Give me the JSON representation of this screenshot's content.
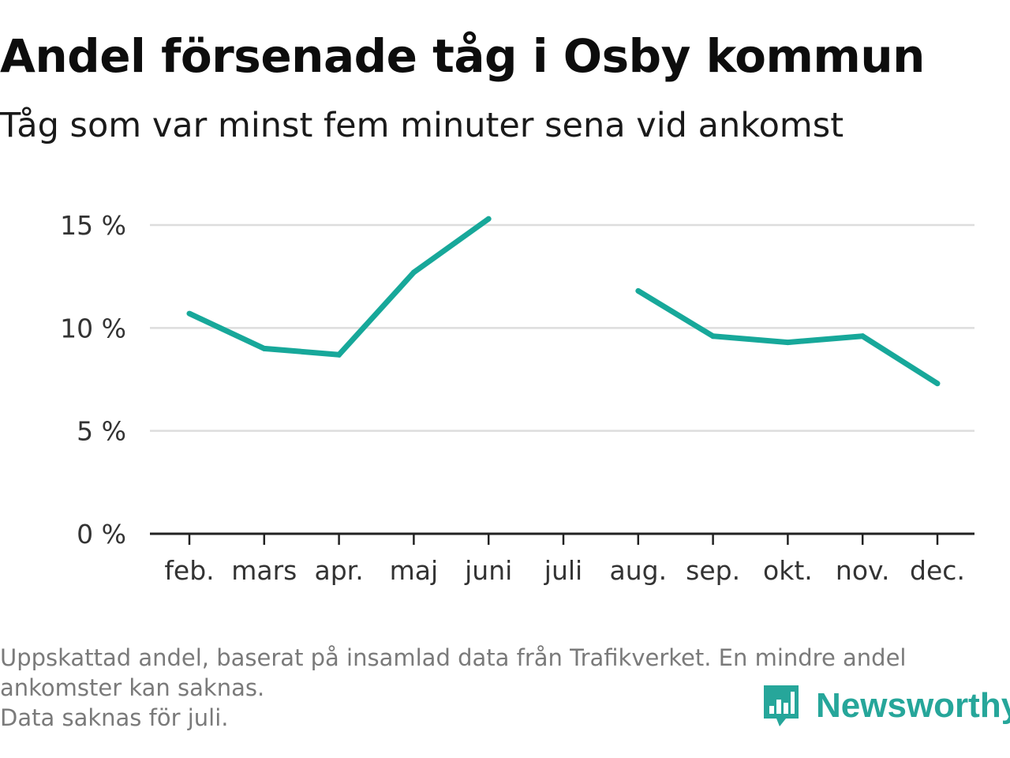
{
  "header": {
    "title": "Andel försenade tåg i Osby kommun",
    "subtitle": "Tåg som var minst fem minuter sena vid ankomst"
  },
  "footer": {
    "note_line1": "Uppskattad andel, baserat på insamlad data från Trafikverket. En mindre andel",
    "note_line2": "ankomster kan saknas.",
    "note_line3": "Data saknas för juli.",
    "brand": "Newsworthy",
    "brand_icon": "newsworthy-chart-bubble-icon"
  },
  "colors": {
    "line": "#17a89a",
    "grid": "#dddddd",
    "axis": "#222222",
    "tick_text": "#333333",
    "brand": "#26a69a"
  },
  "chart_data": {
    "type": "line",
    "categories": [
      "feb.",
      "mars",
      "apr.",
      "maj",
      "juni",
      "juli",
      "aug.",
      "sep.",
      "okt.",
      "nov.",
      "dec."
    ],
    "series": [
      {
        "values": [
          10.7,
          9.0,
          8.7,
          12.7,
          15.3,
          null,
          11.8,
          9.6,
          9.3,
          9.6,
          7.3
        ]
      }
    ],
    "y_ticks": [
      0,
      5,
      10,
      15
    ],
    "y_tick_labels": [
      "0 %",
      "5 %",
      "10 %",
      "15 %"
    ],
    "ylim": [
      0,
      15
    ],
    "y_unit": "%",
    "grid": true,
    "legend": "none",
    "xlabel": "",
    "ylabel": ""
  }
}
